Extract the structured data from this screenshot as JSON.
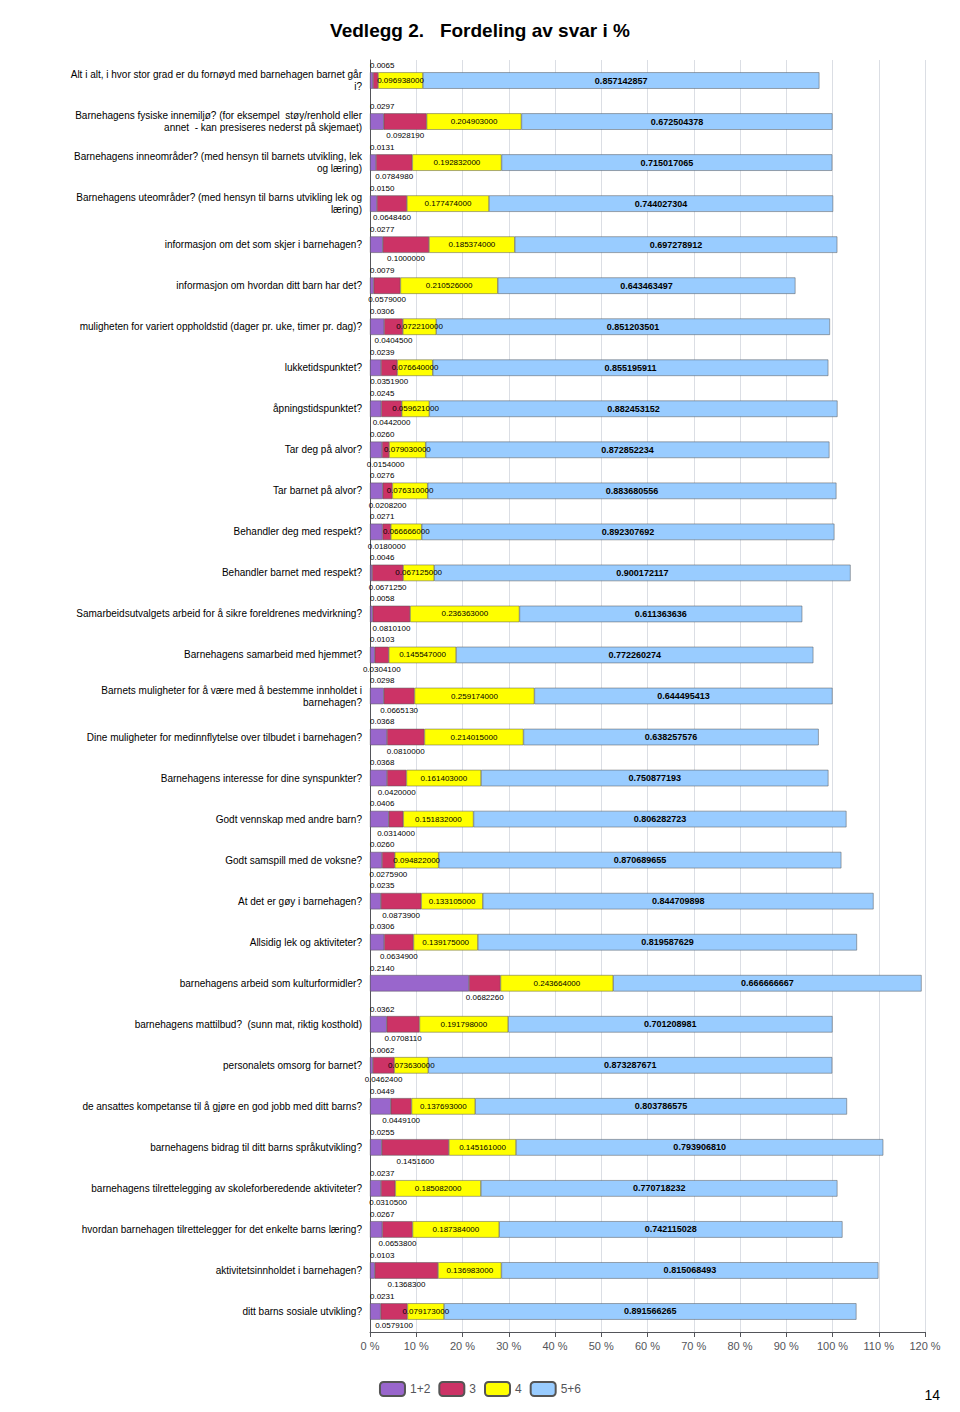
{
  "chart_data": {
    "type": "bar",
    "title": "Vedlegg 2.   Fordeling av svar i %",
    "orientation": "horizontal",
    "stacked": true,
    "data_labels": true,
    "grid": true,
    "legend": "bottom",
    "categories": [
      "Alt i alt, i hvor stor grad er du fornøyd med barnehagen barnet går\ni?",
      "Barnehagens fysiske innemiljø? (for eksempel  støy/renhold eller\nannet  - kan presiseres nederst på skjemaet)",
      "Barnehagens inneområder? (med hensyn til barnets utvikling, lek\nog læring)",
      "Barnehagens uteområder? (med hensyn til barns utvikling lek og\nlæring)",
      "informasjon om det som skjer i barnehagen?",
      "informasjon om hvordan ditt barn har det?",
      "muligheten for variert oppholdstid (dager pr. uke, timer pr. dag)?",
      "lukketidspunktet?",
      "åpningstidspunktet?",
      "Tar deg på alvor?",
      "Tar barnet på alvor?",
      "Behandler deg med respekt?",
      "Behandler barnet med respekt?",
      "Samarbeidsutvalgets arbeid for å sikre foreldrenes medvirkning?",
      "Barnehagens samarbeid med hjemmet?",
      "Barnets muligheter for å være med å bestemme innholdet i\nbarnehagen?",
      "Dine muligheter for medinnflytelse over tilbudet i barnehagen?",
      "Barnehagens interesse for dine synspunkter?",
      "Godt vennskap med andre barn?",
      "Godt samspill med de voksne?",
      "At det er gøy i barnehagen?",
      "Allsidig lek og aktiviteter?",
      "barnehagens arbeid som kulturformidler?",
      "barnehagens mattilbud?  (sunn mat, riktig kosthold)",
      "personalets omsorg for barnet?",
      "de ansattes kompetanse til å gjøre en god jobb med ditt barns?",
      "barnehagens bidrag til ditt barns språkutvikling?",
      "barnehagens tilrettelegging av skoleforberedende aktiviteter?",
      "hvordan barnehagen tilrettelegger for det enkelte barns læring?",
      "aktivitetsinnholdet i barnehagen?",
      "ditt barns sosiale utvikling?"
    ],
    "series": [
      {
        "name": "1+2",
        "color": "#9966CC",
        "values": [
          0.006519,
          0.0297,
          0.01306,
          0.015,
          0.02771,
          0.0079,
          0.0306,
          0.0239,
          0.0245,
          0.026,
          0.0276,
          0.0271,
          0.0046,
          0.00581,
          0.0103,
          0.0298,
          0.03681,
          0.03684,
          0.0406,
          0.02597,
          0.02349,
          0.03063,
          0.214,
          0.0362,
          0.0062,
          0.04491,
          0.02549,
          0.02373,
          0.02665,
          0.01034,
          0.02305
        ],
        "value_labels": [
          "0.0065",
          "0.0297",
          "0.0131",
          "0.0150",
          "0.0277",
          "0.0079",
          "0.0306",
          "0.0239",
          "0.0245",
          "0.0260",
          "0.0276",
          "0.0271",
          "0.0046",
          "0.0058",
          "0.0103",
          "0.0298",
          "0.0368",
          "0.0368",
          "0.0406",
          "0.0260",
          "0.0235",
          "0.0306",
          "0.2140",
          "0.0362",
          "0.0062",
          "0.0449",
          "0.0255",
          "0.0237",
          "0.0267",
          "0.0103",
          "0.0231"
        ]
      },
      {
        "name": "3",
        "color": "#CC3366",
        "values": [
          0.011,
          0.092819,
          0.078498,
          0.064846,
          0.1,
          0.0579,
          0.04045,
          0.03519,
          0.0442,
          0.0154,
          0.02082,
          0.018,
          0.067125,
          0.08101,
          0.03041,
          0.066513,
          0.081,
          0.042,
          0.0314,
          0.02759,
          0.08739,
          0.06349,
          0.068226,
          0.070811,
          0.04624,
          0.04491,
          0.14516,
          0.03105,
          0.06538,
          0.13683,
          0.05791
        ],
        "value_labels": [
          null,
          "0.0928190",
          "0.0784980",
          "0.0648460",
          "0.1000000",
          "0.0579000",
          "0.0404500",
          "0.0351900",
          "0.0442000",
          "0.0154000",
          "0.0208200",
          "0.0180000",
          "0.0671250",
          "0.0810100",
          "0.0304100",
          "0.0665130",
          "0.0810000",
          "0.0420000",
          "0.0314000",
          "0.0275900",
          "0.0873900",
          "0.0634900",
          "0.0682260",
          "0.0708110",
          "0.0462400",
          "0.0449100",
          "0.1451600",
          "0.0310500",
          "0.0653800",
          "0.1368300",
          "0.0579100"
        ]
      },
      {
        "name": "4",
        "color": "#FFFF00",
        "values": [
          0.096938,
          0.204903,
          0.192832,
          0.177474,
          0.185374,
          0.210526,
          0.07221,
          0.07664,
          0.059621,
          0.07903,
          0.07631,
          0.066666,
          0.067125,
          0.236363,
          0.145547,
          0.259174,
          0.214015,
          0.161403,
          0.151832,
          0.094822,
          0.133105,
          0.139175,
          0.243664,
          0.191798,
          0.07363,
          0.137693,
          0.145161,
          0.185082,
          0.187384,
          0.136983,
          0.079173
        ],
        "value_labels": [
          "0.096938000",
          "0.204903000",
          "0.192832000",
          "0.177474000",
          "0.185374000",
          "0.210526000",
          "0.072210000",
          "0.076640000",
          "0.059621000",
          "0.079030000",
          "0.076310000",
          "0.066666000",
          "0.067125000",
          "0.236363000",
          "0.145547000",
          "0.259174000",
          "0.214015000",
          "0.161403000",
          "0.151832000",
          "0.094822000",
          "0.133105000",
          "0.139175000",
          "0.243664000",
          "0.191798000",
          "0.073630000",
          "0.137693000",
          "0.145161000",
          "0.185082000",
          "0.187384000",
          "0.136983000",
          "0.079173000"
        ]
      },
      {
        "name": "5+6",
        "color": "#99CCFF",
        "values": [
          0.857142857,
          0.672504378,
          0.715017065,
          0.744027304,
          0.697278912,
          0.643463497,
          0.851203501,
          0.855195911,
          0.882453152,
          0.872852234,
          0.883680556,
          0.892307692,
          0.900172117,
          0.611363636,
          0.772260274,
          0.644495413,
          0.638257576,
          0.750877193,
          0.806282723,
          0.870689655,
          0.844709898,
          0.819587629,
          0.666666667,
          0.701208981,
          0.873287671,
          0.803786575,
          0.79390681,
          0.770718232,
          0.742115028,
          0.815068493,
          0.891566265
        ],
        "value_labels": [
          "0.857142857",
          "0.672504378",
          "0.715017065",
          "0.744027304",
          "0.697278912",
          "0.643463497",
          "0.851203501",
          "0.855195911",
          "0.882453152",
          "0.872852234",
          "0.883680556",
          "0.892307692",
          "0.900172117",
          "0.611363636",
          "0.772260274",
          "0.644495413",
          "0.638257576",
          "0.750877193",
          "0.806282723",
          "0.870689655",
          "0.844709898",
          "0.819587629",
          "0.666666667",
          "0.701208981",
          "0.873287671",
          "0.803786575",
          "0.793906810",
          "0.770718232",
          "0.742115028",
          "0.815068493",
          "0.891566265"
        ]
      }
    ],
    "xlim": [
      0,
      1.2
    ],
    "xticks": [
      {
        "value": 0,
        "label": "0 %"
      },
      {
        "value": 0.1,
        "label": "10 %"
      },
      {
        "value": 0.2,
        "label": "20 %"
      },
      {
        "value": 0.3,
        "label": "30 %"
      },
      {
        "value": 0.4,
        "label": "40 %"
      },
      {
        "value": 0.5,
        "label": "50 %"
      },
      {
        "value": 0.6,
        "label": "60 %"
      },
      {
        "value": 0.7,
        "label": "70 %"
      },
      {
        "value": 0.8,
        "label": "80 %"
      },
      {
        "value": 0.9,
        "label": "90 %"
      },
      {
        "value": 1.0,
        "label": "100 %"
      },
      {
        "value": 1.1,
        "label": "110 %"
      },
      {
        "value": 1.2,
        "label": "120 %"
      }
    ],
    "annotations": [
      "14"
    ]
  }
}
